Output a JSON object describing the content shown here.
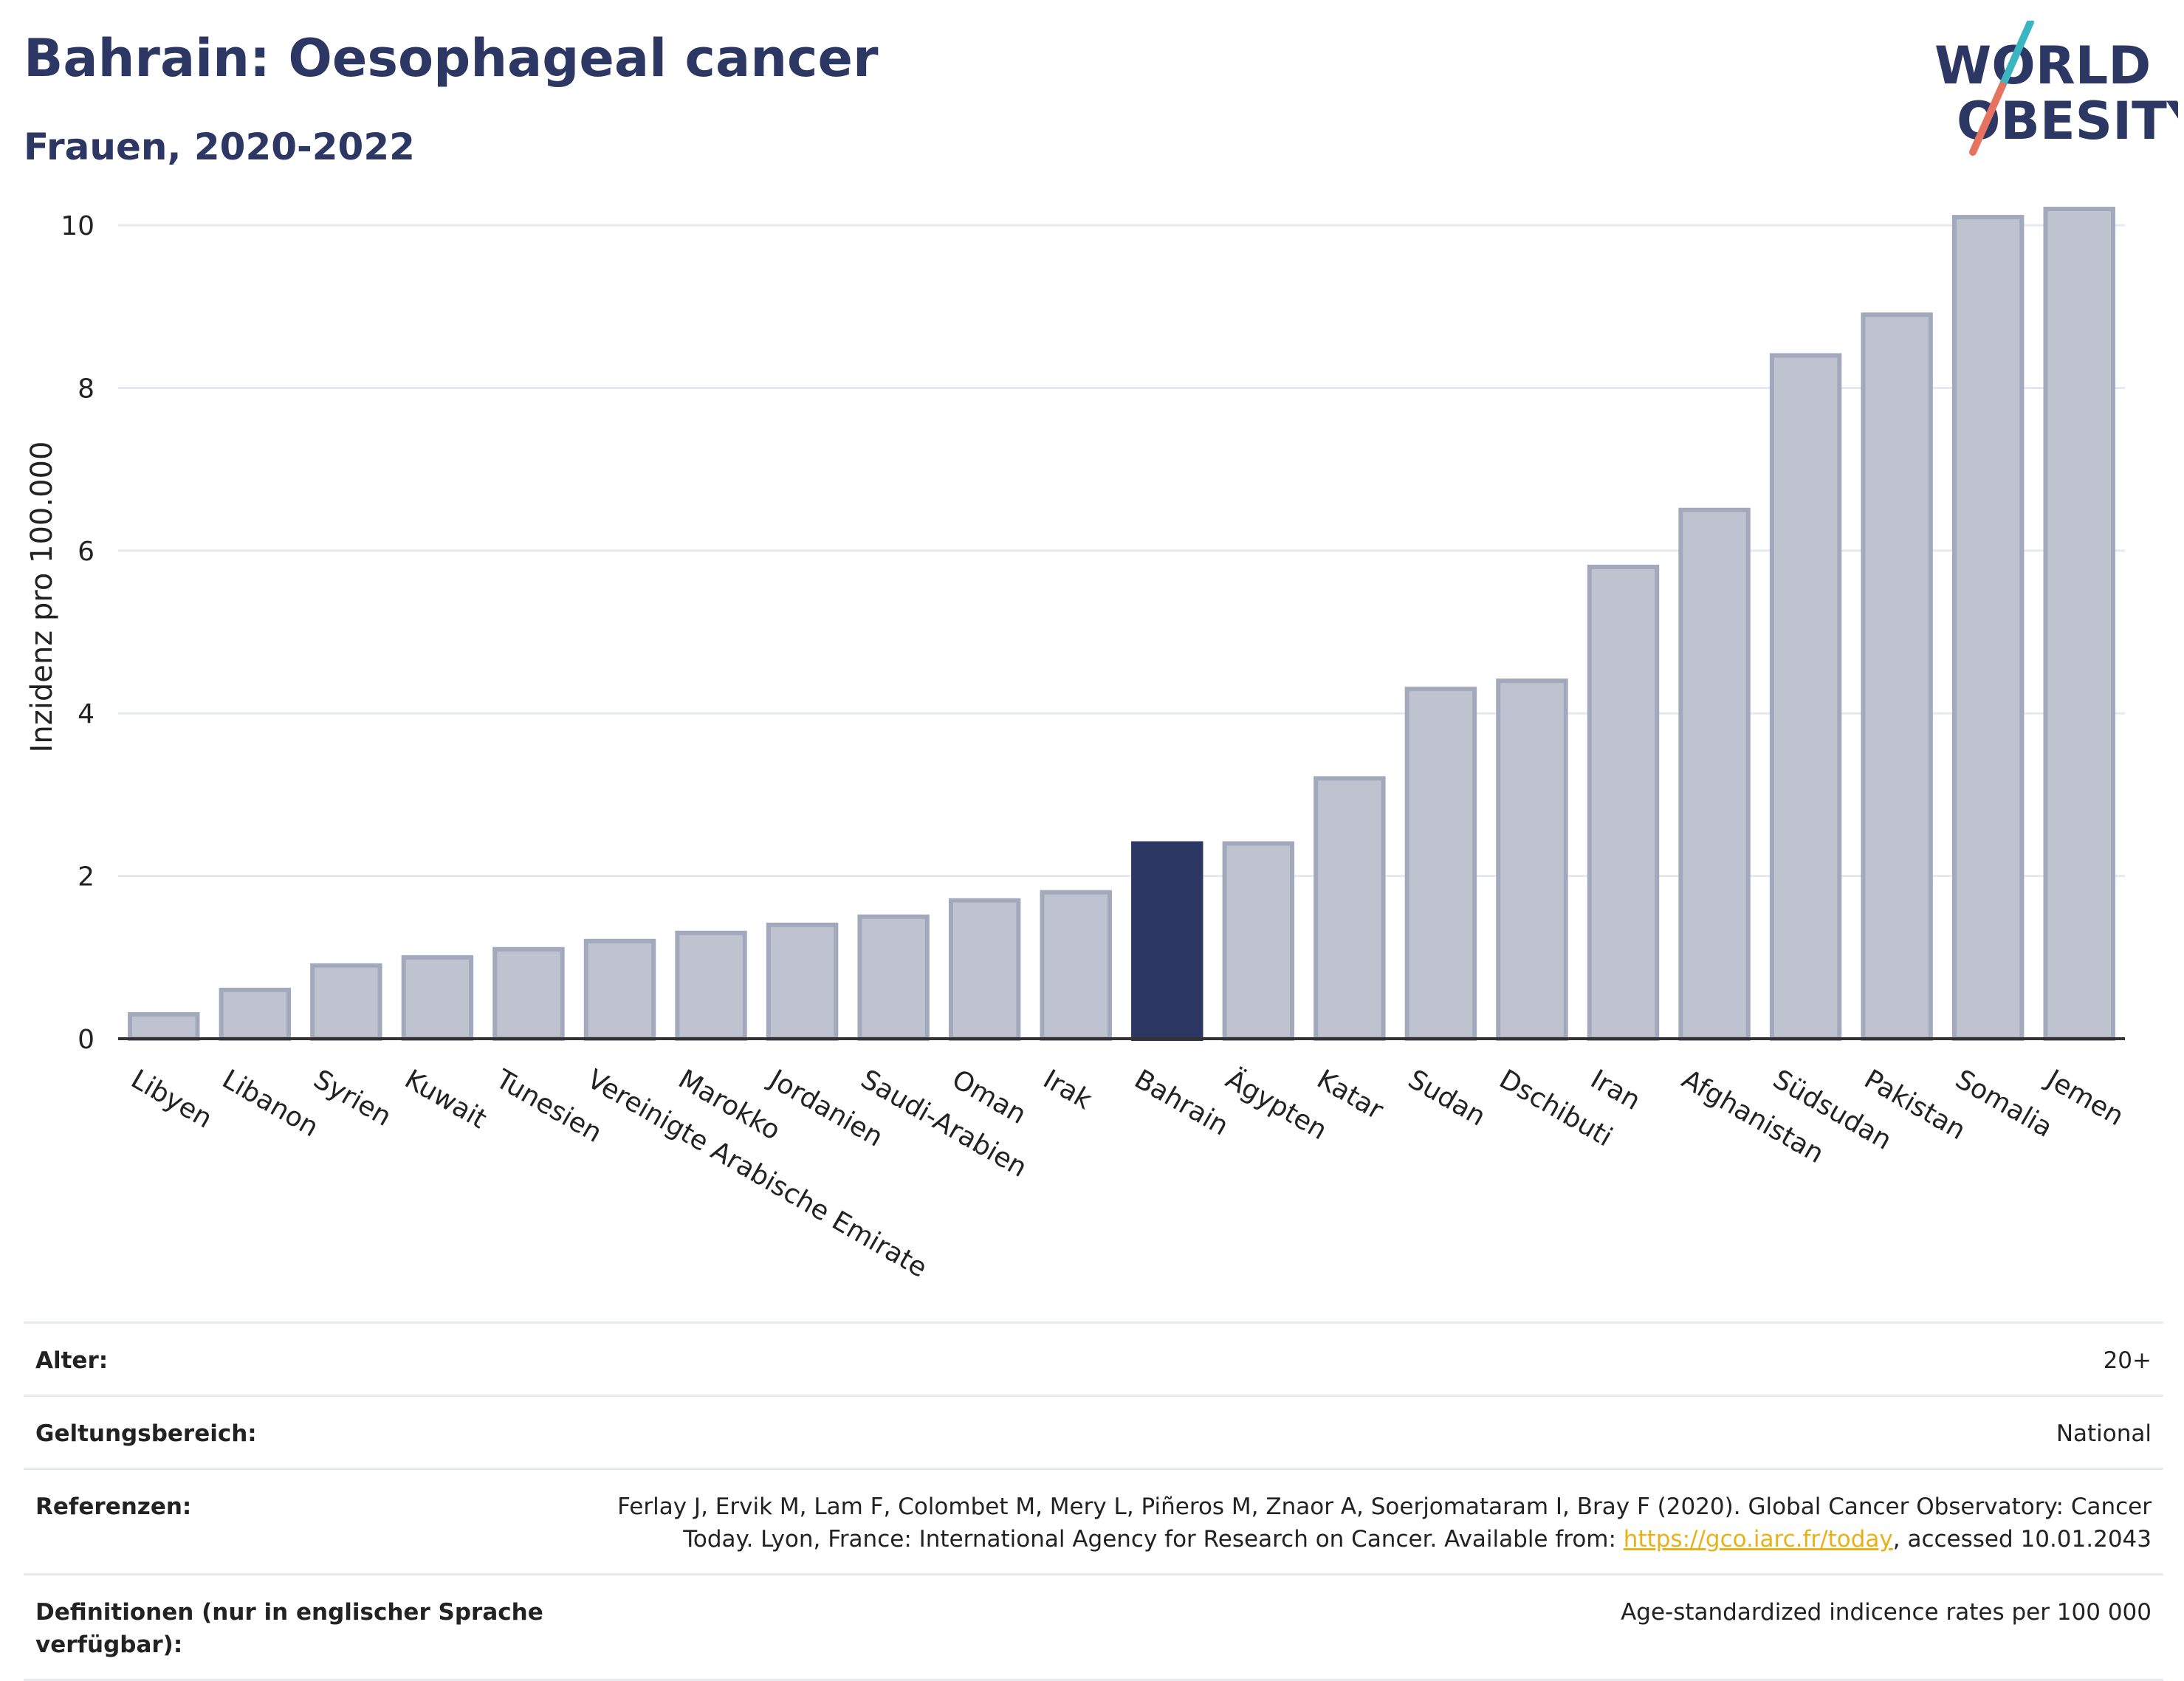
{
  "header": {
    "title": "Bahrain: Oesophageal cancer",
    "subtitle": "Frauen, 2020-2022"
  },
  "logo": {
    "line1": "WORLD",
    "line2": "OBESITY",
    "colors": {
      "text": "#2d3764",
      "slash_teal": "#3bb6c0",
      "slash_red": "#e5735f"
    }
  },
  "colors": {
    "bar": "#bfc3d0",
    "bar_stroke": "#a3a9bd",
    "highlight": "#2d3764",
    "grid": "#e6e9ef",
    "axis": "#333333"
  },
  "chart_data": {
    "type": "bar",
    "ylabel": "Inzidenz pro 100.000",
    "ylim": [
      0,
      10.5
    ],
    "yticks": [
      0,
      2,
      4,
      6,
      8,
      10
    ],
    "grid": true,
    "highlight": "Bahrain",
    "categories": [
      "Libyen",
      "Libanon",
      "Syrien",
      "Kuwait",
      "Tunesien",
      "Vereinigte Arabische Emirate",
      "Marokko",
      "Jordanien",
      "Saudi-Arabien",
      "Oman",
      "Irak",
      "Bahrain",
      "Ägypten",
      "Katar",
      "Sudan",
      "Dschibuti",
      "Iran",
      "Afghanistan",
      "Südsudan",
      "Pakistan",
      "Somalia",
      "Jemen"
    ],
    "values": [
      0.3,
      0.6,
      0.9,
      1.0,
      1.1,
      1.2,
      1.3,
      1.4,
      1.5,
      1.7,
      1.8,
      2.4,
      2.4,
      3.2,
      4.3,
      4.4,
      5.8,
      6.5,
      8.4,
      8.9,
      10.1,
      10.2
    ]
  },
  "meta": {
    "age_label": "Alter:",
    "age_value": "20+",
    "scope_label": "Geltungsbereich:",
    "scope_value": "National",
    "ref_label": "Referenzen:",
    "ref_text_1": "Ferlay J, Ervik M, Lam F, Colombet M, Mery L, Piñeros M, Znaor A, Soerjomataram I, Bray F (2020). Global Cancer Observatory: Cancer Today. Lyon, France: International Agency for Research on Cancer. Available from: ",
    "ref_link": "https://gco.iarc.fr/today",
    "ref_text_2": ", accessed 10.01.2043",
    "def_label": "Definitionen (nur in englischer Sprache verfügbar):",
    "def_value": "Age-standardized indicence rates per 100 000"
  }
}
